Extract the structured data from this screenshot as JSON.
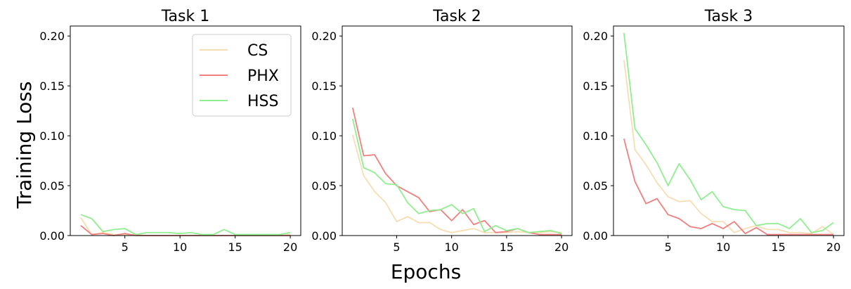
{
  "chart_data": {
    "type": "line",
    "ylabel": "Training Loss",
    "xlabel": "Epochs",
    "ylim": [
      0,
      0.21
    ],
    "xlim": [
      0.05,
      20.95
    ],
    "yticks": [
      0.0,
      0.05,
      0.1,
      0.15,
      0.2
    ],
    "xticks": [
      5,
      10,
      15,
      20
    ],
    "grid": false,
    "legend": {
      "location": "top-right",
      "panel": 0
    },
    "series_colors": {
      "CS": "#f5deb3",
      "PHX": "#f08080",
      "HSS": "#90ee90"
    },
    "panels": [
      {
        "title": "Task 1",
        "x": [
          1,
          2,
          3,
          4,
          5,
          6,
          7,
          8,
          9,
          10,
          11,
          12,
          13,
          14,
          15,
          16,
          17,
          18,
          19,
          20
        ],
        "series": [
          {
            "name": "CS",
            "values": [
              0.018,
              0.001,
              0.003,
              0.001,
              0.001,
              0.001,
              0.0,
              0.0,
              0.0,
              0.0,
              0.0,
              0.0,
              0.0,
              0.0,
              0.0,
              0.0,
              0.0,
              0.0,
              0.0,
              0.001
            ]
          },
          {
            "name": "PHX",
            "values": [
              0.01,
              0.001,
              0.002,
              0.0,
              0.002,
              0.0,
              0.0,
              0.0,
              0.0,
              0.0,
              0.0,
              0.0,
              0.0,
              0.0,
              0.0,
              0.0,
              0.0,
              0.0,
              0.0,
              0.0
            ]
          },
          {
            "name": "HSS",
            "values": [
              0.021,
              0.017,
              0.004,
              0.006,
              0.007,
              0.001,
              0.003,
              0.003,
              0.003,
              0.002,
              0.003,
              0.001,
              0.001,
              0.006,
              0.001,
              0.001,
              0.001,
              0.001,
              0.001,
              0.003
            ]
          }
        ]
      },
      {
        "title": "Task 2",
        "x": [
          1,
          2,
          3,
          4,
          5,
          6,
          7,
          8,
          9,
          10,
          11,
          12,
          13,
          14,
          15,
          16,
          17,
          18,
          19,
          20
        ],
        "series": [
          {
            "name": "CS",
            "values": [
              0.101,
              0.06,
              0.044,
              0.033,
              0.014,
              0.019,
              0.013,
              0.013,
              0.006,
              0.003,
              0.005,
              0.007,
              0.003,
              0.003,
              0.003,
              0.004,
              0.003,
              0.003,
              0.004,
              0.003
            ]
          },
          {
            "name": "PHX",
            "values": [
              0.128,
              0.08,
              0.081,
              0.062,
              0.05,
              0.044,
              0.038,
              0.024,
              0.026,
              0.015,
              0.026,
              0.011,
              0.015,
              0.003,
              0.004,
              0.007,
              0.003,
              0.001,
              0.001,
              0.001
            ]
          },
          {
            "name": "HSS",
            "values": [
              0.117,
              0.068,
              0.063,
              0.052,
              0.051,
              0.033,
              0.022,
              0.025,
              0.026,
              0.031,
              0.022,
              0.027,
              0.004,
              0.01,
              0.005,
              0.007,
              0.003,
              0.004,
              0.005,
              0.002
            ]
          }
        ]
      },
      {
        "title": "Task 3",
        "x": [
          1,
          2,
          3,
          4,
          5,
          6,
          7,
          8,
          9,
          10,
          11,
          12,
          13,
          14,
          15,
          16,
          17,
          18,
          19,
          20
        ],
        "series": [
          {
            "name": "CS",
            "values": [
              0.176,
              0.086,
              0.071,
              0.053,
              0.039,
              0.034,
              0.035,
              0.022,
              0.014,
              0.014,
              0.003,
              0.007,
              0.01,
              0.006,
              0.006,
              0.003,
              0.003,
              0.002,
              0.009,
              0.001
            ]
          },
          {
            "name": "PHX",
            "values": [
              0.097,
              0.054,
              0.032,
              0.037,
              0.021,
              0.017,
              0.009,
              0.007,
              0.012,
              0.007,
              0.014,
              0.002,
              0.008,
              0.001,
              0.001,
              0.001,
              0.001,
              0.001,
              0.001,
              0.001
            ]
          },
          {
            "name": "HSS",
            "values": [
              0.203,
              0.107,
              0.091,
              0.073,
              0.05,
              0.072,
              0.056,
              0.036,
              0.044,
              0.029,
              0.026,
              0.025,
              0.01,
              0.012,
              0.012,
              0.007,
              0.017,
              0.003,
              0.005,
              0.013
            ]
          }
        ]
      }
    ]
  }
}
